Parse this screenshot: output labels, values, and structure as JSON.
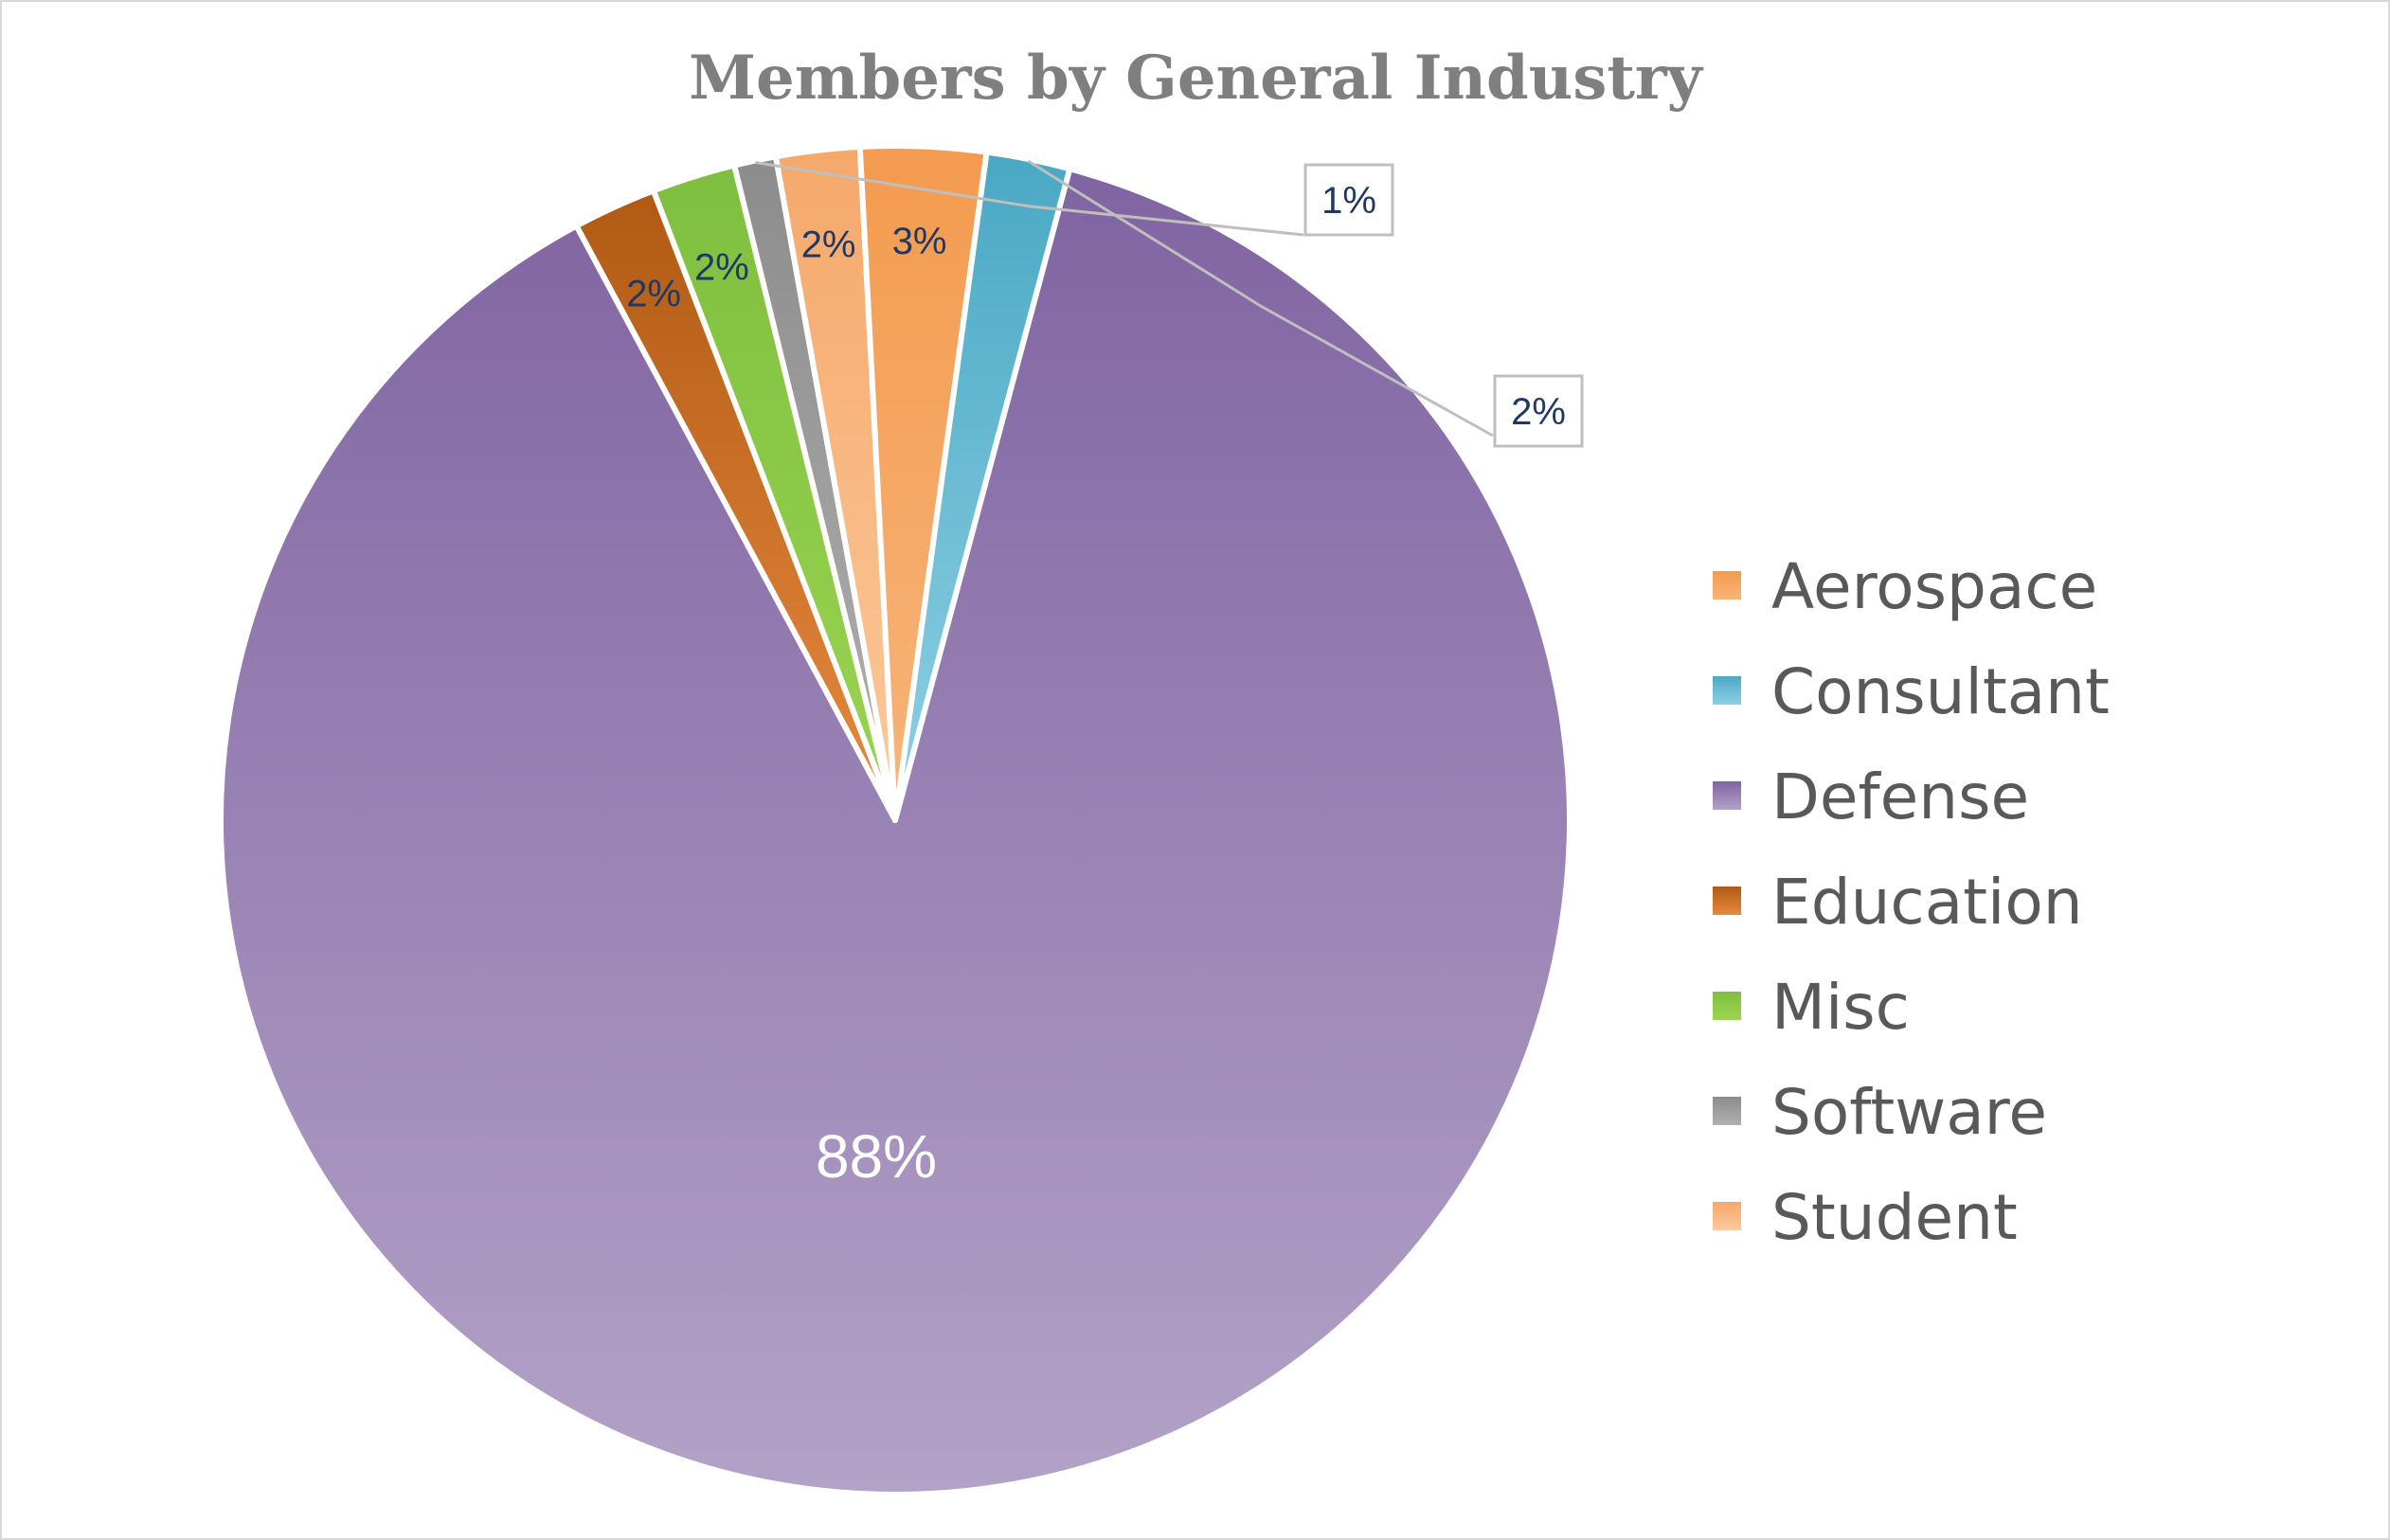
{
  "chart_data": {
    "type": "pie",
    "title": "Members by General Industry",
    "legend_position": "right",
    "start_angle_deg": 15,
    "slices": [
      {
        "name": "Defense",
        "value": 88,
        "label": "88%",
        "color": "#8064a2",
        "color_light": "#b3a2c7",
        "callout": false
      },
      {
        "name": "Education",
        "value": 2,
        "label": "2%",
        "color": "#b05a14",
        "color_light": "#e8893f",
        "callout": false
      },
      {
        "name": "Misc",
        "value": 2,
        "label": "2%",
        "color": "#7fbf3f",
        "color_light": "#9ad451",
        "callout": false
      },
      {
        "name": "Software",
        "value": 1,
        "label": "1%",
        "color": "#8c8c8c",
        "color_light": "#b0b0b0",
        "callout": true
      },
      {
        "name": "Student",
        "value": 2,
        "label": "2%",
        "color": "#f5a86a",
        "color_light": "#fcc99c",
        "callout": false
      },
      {
        "name": "Aerospace",
        "value": 3,
        "label": "3%",
        "color": "#f39b4f",
        "color_light": "#f8b47a",
        "callout": false
      },
      {
        "name": "Consultant",
        "value": 2,
        "label": "2%",
        "color": "#4aa8c4",
        "color_light": "#8ed0e4",
        "callout": true
      }
    ],
    "legend_order": [
      "Aerospace",
      "Consultant",
      "Defense",
      "Education",
      "Misc",
      "Software",
      "Student"
    ]
  }
}
